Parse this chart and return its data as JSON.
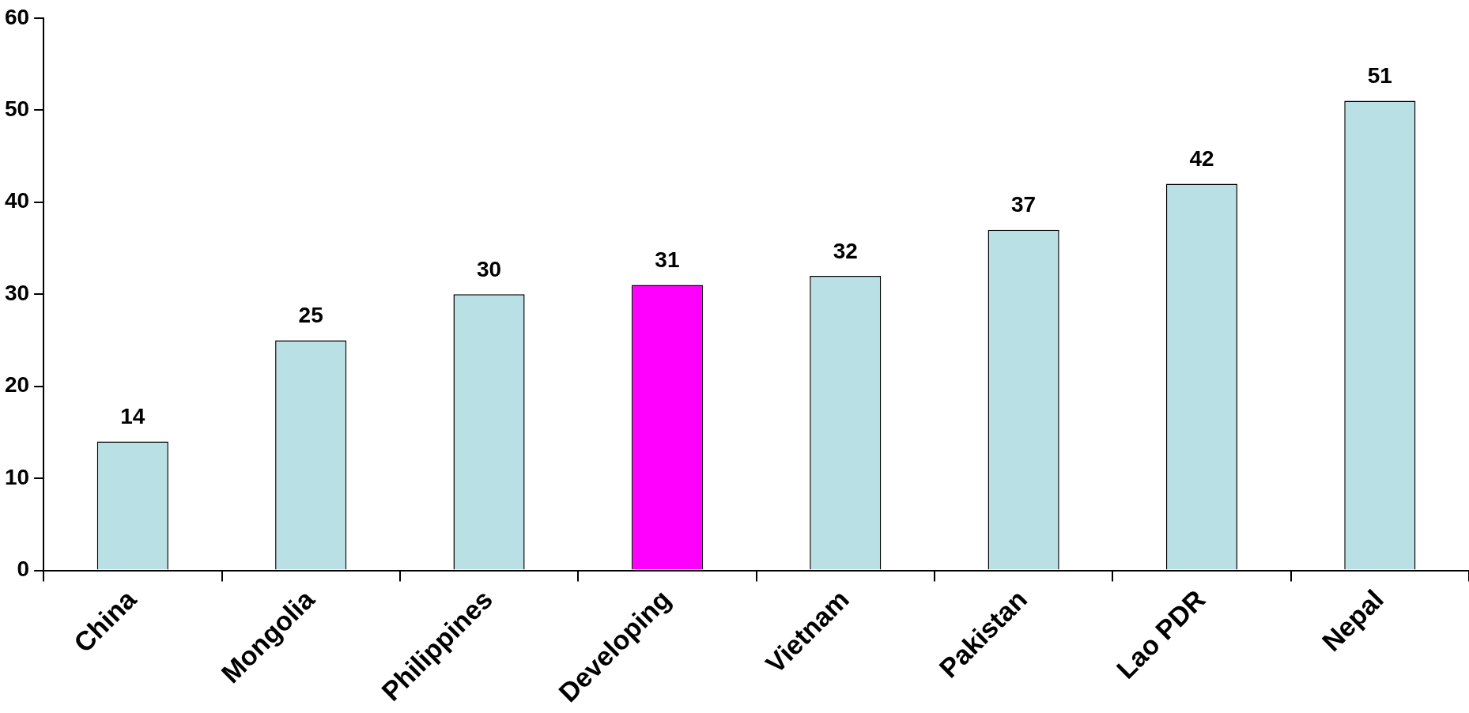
{
  "chart_data": {
    "type": "bar",
    "categories": [
      "China",
      "Mongolia",
      "Philippines",
      "Developing",
      "Vietnam",
      "Pakistan",
      "Lao PDR",
      "Nepal"
    ],
    "values": [
      14,
      25,
      30,
      31,
      32,
      37,
      42,
      51
    ],
    "colors": [
      "#b9e0e4",
      "#b9e0e4",
      "#b9e0e4",
      "#ff00ff",
      "#b9e0e4",
      "#b9e0e4",
      "#b9e0e4",
      "#b9e0e4"
    ],
    "ylim": [
      0,
      60
    ],
    "yticks": [
      0,
      10,
      20,
      30,
      40,
      50,
      60
    ],
    "grid": false,
    "legend": false,
    "data_labels": true
  }
}
